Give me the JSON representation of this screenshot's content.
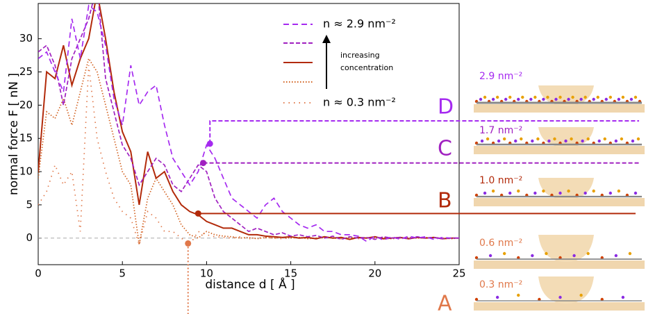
{
  "chart_data": {
    "type": "line",
    "x_label": "distance d [ Å ]",
    "y_label": "normal force F [ nN ]",
    "xlim": [
      0,
      25
    ],
    "ylim": [
      -4,
      35.3
    ],
    "xticks": [
      0,
      5,
      10,
      15,
      20,
      25
    ],
    "yticks": [
      0,
      5,
      10,
      15,
      20,
      25,
      30
    ],
    "zero_line": true,
    "x": [
      0,
      0.5,
      1,
      1.5,
      2,
      2.5,
      3,
      3.5,
      4,
      4.5,
      5,
      5.5,
      6,
      6.5,
      7,
      7.5,
      8,
      8.5,
      9,
      9.5,
      10,
      10.5,
      11,
      11.5,
      12,
      12.5,
      13,
      13.5,
      14,
      14.5,
      15,
      15.5,
      16,
      16.5,
      17,
      17.5,
      18,
      18.5,
      19,
      19.5,
      20,
      20.5,
      21,
      21.5,
      22,
      22.5,
      23,
      23.5,
      24,
      24.5,
      25
    ],
    "series": [
      {
        "name": "n ≈ 2.9 nm⁻²",
        "color": "#a52af0",
        "dash": "8,5",
        "values": [
          27,
          28,
          25,
          22,
          33,
          27,
          35,
          34,
          29,
          21,
          17,
          26,
          20,
          22,
          23,
          17,
          12,
          10,
          8,
          10,
          14,
          12,
          9,
          6,
          5,
          4,
          3,
          5,
          6,
          4,
          3,
          2,
          1.5,
          2,
          1,
          1,
          0.5,
          0.5,
          0.3,
          -0.5,
          0.3,
          -0.3,
          0.2,
          -0.2,
          0.3,
          0,
          0.2,
          -0.2,
          0.1,
          0,
          0
        ]
      },
      {
        "color": "#a020c0",
        "dash": "6,3",
        "values": [
          28,
          29,
          26,
          20,
          27,
          30,
          33,
          38,
          24,
          19,
          14,
          12,
          8,
          10,
          12,
          11,
          8,
          7,
          9,
          11,
          10,
          6,
          4,
          3,
          2,
          1,
          1.5,
          1,
          0.5,
          0.8,
          0.3,
          0.5,
          0.2,
          0.4,
          0,
          0.3,
          -0.2,
          0.2,
          0,
          0.1,
          -0.2,
          0.2,
          0,
          0.1,
          -0.1,
          0.2,
          0,
          0.1,
          -0.1,
          0,
          0
        ]
      },
      {
        "color": "#b22a0a",
        "dash": "none",
        "values": [
          10,
          25,
          24,
          29,
          23,
          27,
          30,
          37,
          30,
          22,
          16,
          13,
          5,
          13,
          9,
          10,
          7,
          5,
          4,
          3.5,
          2.5,
          2,
          1.5,
          1.5,
          1,
          0.5,
          0.5,
          0.3,
          0.2,
          0.1,
          0.2,
          0,
          0.1,
          -0.1,
          0.2,
          0,
          0.1,
          -0.2,
          0.1,
          0,
          0.2,
          -0.1,
          0,
          0.1,
          -0.1,
          0.1,
          0,
          0.1,
          -0.1,
          0,
          0
        ]
      },
      {
        "color": "#d2601e",
        "dash": "1.5,2.5",
        "values": [
          9,
          19,
          18,
          21,
          17,
          22,
          27,
          25,
          20,
          15,
          10,
          8,
          -1,
          6,
          9,
          7,
          5,
          2,
          0.5,
          0,
          1,
          0.5,
          0.3,
          0.2,
          0,
          0.1,
          -0.1,
          0.1,
          0,
          0.1,
          0,
          0.1,
          -0.1,
          0,
          0.1,
          0,
          -0.1,
          0.1,
          0,
          0,
          0.1,
          0,
          -0.1,
          0,
          0.1,
          0,
          0,
          0.1,
          0,
          -0.1,
          0
        ]
      },
      {
        "name": "n ≈ 0.3 nm⁻²",
        "color": "#e0784a",
        "dash": "1.5,6",
        "values": [
          5,
          7,
          11,
          8,
          10,
          1,
          26,
          15,
          10,
          6,
          4,
          3,
          -1,
          4,
          3,
          1,
          1,
          0,
          -1,
          1,
          0.5,
          0.2,
          0.1,
          0,
          0.2,
          -0.1,
          0,
          0.1,
          0,
          -0.1,
          0,
          0.1,
          0,
          -0.1,
          0.1,
          0,
          0,
          0.1,
          -0.1,
          0,
          0,
          0.1,
          0,
          0,
          -0.1,
          0,
          0.1,
          0,
          0,
          0,
          0
        ]
      }
    ],
    "legend_note": [
      "increasing",
      "concentration"
    ],
    "markers": [
      {
        "x": 10.2,
        "y": 14.2,
        "color": "#a52af0"
      },
      {
        "x": 9.8,
        "y": 11.3,
        "color": "#a020c0"
      },
      {
        "x": 9.5,
        "y": 3.7,
        "color": "#b22a0a"
      },
      {
        "x": 8.9,
        "y": -0.8,
        "color": "#e0784a"
      }
    ],
    "panels": [
      {
        "label": "D",
        "text": "2.9 nm⁻²",
        "color": "#a52af0"
      },
      {
        "label": "C",
        "text": "1.7 nm⁻²",
        "color": "#a020c0"
      },
      {
        "label": "B",
        "text": "1.0 nm⁻²",
        "color": "#b22a0a"
      },
      {
        "text": "0.6 nm⁻²",
        "color": "#e0784a"
      },
      {
        "label": "A",
        "text": "0.3 nm⁻²",
        "color": "#e0784a"
      }
    ]
  }
}
